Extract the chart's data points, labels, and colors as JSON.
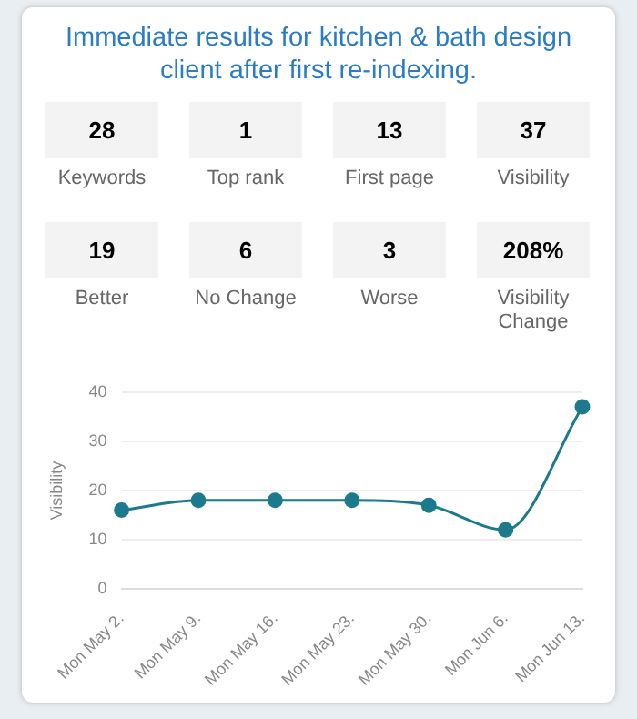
{
  "chart_data": [
    {
      "type": "other",
      "title": "Immediate results for kitchen & bath design client after first re-indexing.",
      "categories": [
        "Keywords",
        "Top rank",
        "First page",
        "Visibility",
        "Better",
        "No Change",
        "Worse",
        "Visibility Change"
      ],
      "value_labels": [
        "28",
        "1",
        "13",
        "37",
        "19",
        "6",
        "3",
        "208%"
      ]
    },
    {
      "type": "line",
      "ylabel": "Visibility",
      "categories": [
        "Mon May 2.",
        "Mon May 9.",
        "Mon May 16.",
        "Mon May 23.",
        "Mon May 30.",
        "Mon Jun 6.",
        "Mon Jun 13."
      ],
      "series": [
        {
          "color": "#1b7b8c",
          "values": [
            16,
            18,
            18,
            18,
            17,
            12,
            37
          ]
        }
      ],
      "ylim": [
        0,
        40
      ],
      "yticks": [
        0,
        10,
        20,
        30,
        40
      ],
      "grid": "y",
      "marker": "circle",
      "legend": false
    }
  ]
}
